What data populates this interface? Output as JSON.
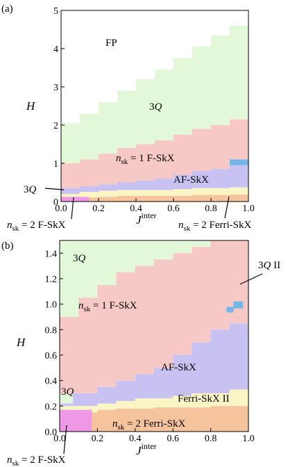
{
  "chart_data": [
    {
      "panel": "(a)",
      "type": "heatmap",
      "xlabel_base": "J",
      "xlabel_sup": "inter",
      "ylabel": "H",
      "xlim": [
        0.0,
        1.0
      ],
      "ylim": [
        0,
        5
      ],
      "x_ticks": [
        "0.0",
        "0.2",
        "0.4",
        "0.6",
        "0.8",
        "1.0"
      ],
      "y_ticks": [
        "0",
        "1",
        "2",
        "3",
        "4",
        "5"
      ],
      "phases": {
        "fp": "FP",
        "q3": "3Q",
        "f1": "n_sk = 1 F-SkX",
        "af": "AF-SkX",
        "ferri2": "n_sk = 2 Ferri-SkX",
        "f2": "n_sk = 2 F-SkX"
      },
      "boundaries": {
        "x": [
          0.0,
          0.1,
          0.2,
          0.3,
          0.4,
          0.5,
          0.6,
          0.7,
          0.8,
          0.9,
          1.0
        ],
        "q3_lower": [
          2.05,
          2.3,
          2.6,
          2.9,
          3.2,
          3.45,
          3.75,
          4.05,
          4.35,
          4.6,
          4.85
        ],
        "f1_upper": [
          1.0,
          1.1,
          1.25,
          1.4,
          1.5,
          1.6,
          1.75,
          1.9,
          2.0,
          2.15,
          2.3
        ],
        "af_upper": [
          0.35,
          0.4,
          0.45,
          0.5,
          0.55,
          0.6,
          0.7,
          0.8,
          0.85,
          0.95,
          1.05
        ],
        "yellow_upper": [
          0.2,
          0.25,
          0.28,
          0.3,
          0.3,
          0.3,
          0.32,
          0.35,
          0.35,
          0.37,
          0.4
        ],
        "ferri2_upper": [
          0.1,
          0.1,
          0.12,
          0.15,
          0.15,
          0.15,
          0.15,
          0.17,
          0.17,
          0.18,
          0.2
        ],
        "f2_xmax": 0.15,
        "f2_ymax": 0.12
      },
      "labels": {
        "fp": "FP",
        "q3_main": "3Q",
        "f1": "n_sk = 1 F-SkX",
        "af": "AF-SkX",
        "q3_pointer": "3Q",
        "f2_pointer": "n_sk = 2 F-SkX",
        "ferri2_pointer": "n_sk = 2 Ferri-SkX"
      }
    },
    {
      "panel": "(b)",
      "type": "heatmap",
      "xlabel_base": "J",
      "xlabel_sup": "inter",
      "ylabel": "H",
      "xlim": [
        0.0,
        1.0
      ],
      "ylim": [
        0.0,
        1.5
      ],
      "x_ticks": [
        "0.0",
        "0.2",
        "0.4",
        "0.6",
        "0.8",
        "1.0"
      ],
      "y_ticks": [
        "0.0",
        "0.2",
        "0.4",
        "0.6",
        "0.8",
        "1.0",
        "1.2",
        "1.4"
      ],
      "boundaries": {
        "x": [
          0.0,
          0.1,
          0.2,
          0.3,
          0.4,
          0.5,
          0.6,
          0.7,
          0.8,
          0.9,
          1.0
        ],
        "q3_lower": [
          0.9,
          1.05,
          1.15,
          1.25,
          1.3,
          1.35,
          1.4,
          1.45,
          1.5,
          1.5,
          1.5
        ],
        "f1_upper_af": [
          0.3,
          0.3,
          0.35,
          0.4,
          0.45,
          0.5,
          0.6,
          0.7,
          0.8,
          0.85,
          0.9
        ],
        "yellow_upper": [
          0.2,
          0.2,
          0.22,
          0.24,
          0.26,
          0.26,
          0.28,
          0.3,
          0.3,
          0.33,
          0.35
        ],
        "ferri2_upper": [
          0.17,
          0.15,
          0.17,
          0.18,
          0.18,
          0.19,
          0.19,
          0.19,
          0.2,
          0.2,
          0.2
        ],
        "f2_xmax": 0.17,
        "f2_ymax": 0.17,
        "q3_low_band": [
          0.0,
          0.07,
          0.22,
          0.3
        ],
        "q3_ii_point": [
          0.95,
          1.0
        ]
      },
      "labels": {
        "q3_top": "3Q",
        "f1": "n_sk = 1 F-SkX",
        "af": "AF-SkX",
        "q3_low": "3Q",
        "ferri_ii": "Ferri-SkX II",
        "ferri2": "n_sk = 2 Ferri-SkX",
        "q3_ii": "3Q II",
        "f2_pointer": "n_sk = 2 F-SkX"
      }
    }
  ],
  "colors": {
    "fp": "#ffffff",
    "q3": "#e2f8d8",
    "f1": "#f6c9c6",
    "af": "#c8c2f2",
    "yellow": "#fbf5c6",
    "ferri2": "#f5c39c",
    "f2": "#ee98e6",
    "q3ii": "#73b6ea"
  }
}
